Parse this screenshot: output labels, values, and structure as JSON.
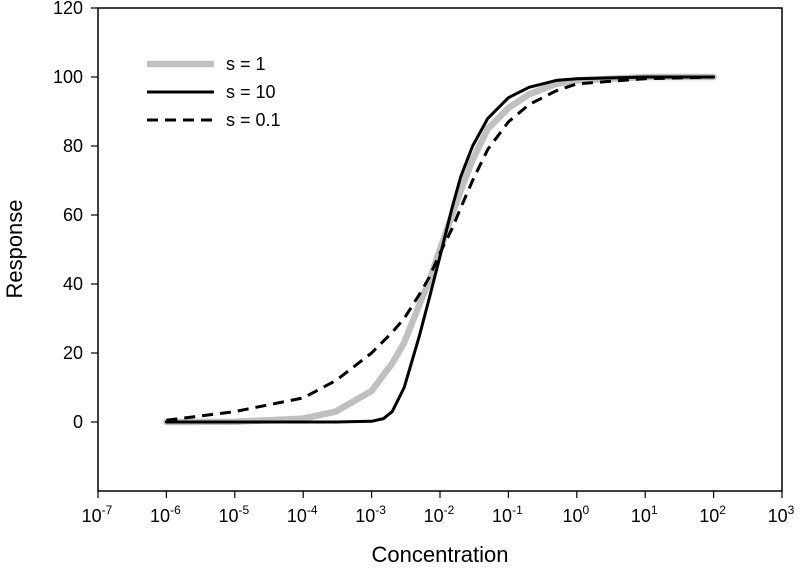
{
  "chart_data": {
    "type": "line",
    "title": "",
    "xlabel": "Concentration",
    "ylabel": "Response",
    "x_scale": "log",
    "xlim": [
      1e-07,
      1000
    ],
    "ylim": [
      -20,
      120
    ],
    "x_ticks": [
      {
        "base": "10",
        "exp": "-7",
        "value": 1e-07
      },
      {
        "base": "10",
        "exp": "-6",
        "value": 1e-06
      },
      {
        "base": "10",
        "exp": "-5",
        "value": 1e-05
      },
      {
        "base": "10",
        "exp": "-4",
        "value": 0.0001
      },
      {
        "base": "10",
        "exp": "-3",
        "value": 0.001
      },
      {
        "base": "10",
        "exp": "-2",
        "value": 0.01
      },
      {
        "base": "10",
        "exp": "-1",
        "value": 0.1
      },
      {
        "base": "10",
        "exp": "0",
        "value": 1
      },
      {
        "base": "10",
        "exp": "1",
        "value": 10
      },
      {
        "base": "10",
        "exp": "2",
        "value": 100
      },
      {
        "base": "10",
        "exp": "3",
        "value": 1000
      }
    ],
    "y_ticks": [
      "0",
      "20",
      "40",
      "60",
      "80",
      "100",
      "120"
    ],
    "grid": false,
    "legend_position": "top-left",
    "series": [
      {
        "name": "s = 1",
        "color": "#c0c0c0",
        "dash": "solid",
        "x": [
          1e-06,
          1e-05,
          0.0001,
          0.0003,
          0.001,
          0.002,
          0.003,
          0.005,
          0.007,
          0.01,
          0.015,
          0.02,
          0.03,
          0.05,
          0.1,
          0.2,
          0.5,
          1,
          10,
          100
        ],
        "y": [
          0,
          0.1,
          1,
          3,
          9,
          17,
          23,
          34,
          41,
          50,
          60,
          67,
          76,
          85,
          91,
          95,
          98,
          99,
          100,
          100
        ]
      },
      {
        "name": "s = 10",
        "color": "#000000",
        "dash": "solid",
        "x": [
          1e-06,
          1e-05,
          0.0001,
          0.0003,
          0.001,
          0.0015,
          0.002,
          0.003,
          0.005,
          0.007,
          0.01,
          0.015,
          0.02,
          0.03,
          0.05,
          0.1,
          0.2,
          0.5,
          1,
          10,
          100
        ],
        "y": [
          0,
          0,
          0,
          0,
          0.2,
          1,
          3,
          10,
          25,
          36,
          48,
          62,
          71,
          80,
          88,
          94,
          97,
          99,
          99.5,
          100,
          100
        ]
      },
      {
        "name": "s = 0.1",
        "color": "#000000",
        "dash": "dashed",
        "x": [
          1e-06,
          1e-05,
          0.0001,
          0.0003,
          0.001,
          0.002,
          0.003,
          0.005,
          0.007,
          0.01,
          0.015,
          0.02,
          0.03,
          0.05,
          0.1,
          0.2,
          0.5,
          1,
          10,
          100
        ],
        "y": [
          0.5,
          3,
          7,
          12,
          20,
          26,
          30,
          37,
          42,
          49,
          56,
          62,
          70,
          79,
          87,
          92,
          96,
          98,
          99.5,
          100
        ]
      }
    ]
  }
}
